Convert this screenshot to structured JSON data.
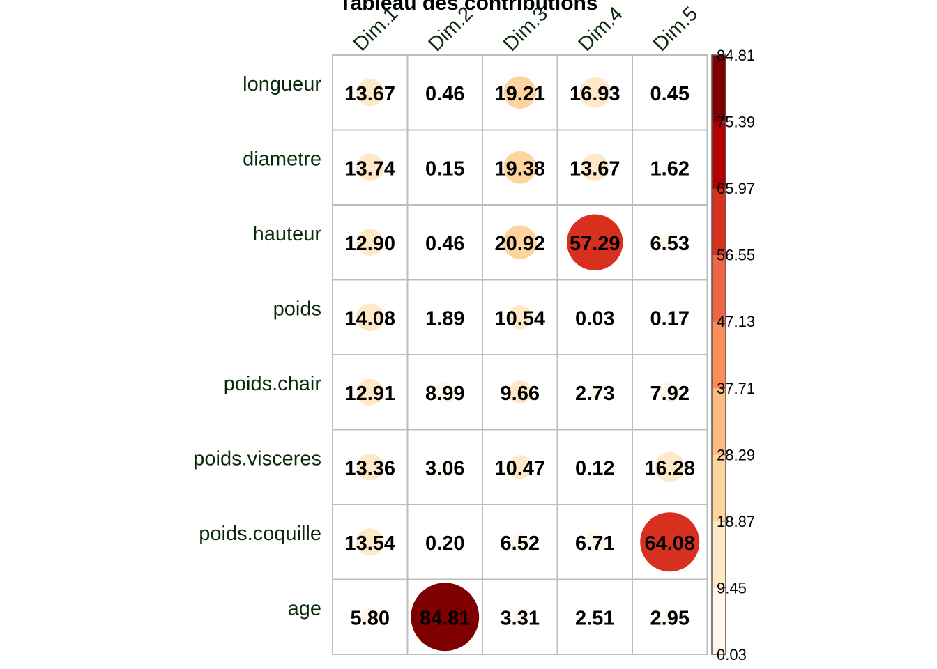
{
  "chart_data": {
    "type": "heatmap",
    "title": "Tableau des contributions",
    "rows": [
      "longueur",
      "diametre",
      "hauteur",
      "poids",
      "poids.chair",
      "poids.visceres",
      "poids.coquille",
      "age"
    ],
    "columns": [
      "Dim.1",
      "Dim.2",
      "Dim.3",
      "Dim.4",
      "Dim.5"
    ],
    "values": [
      [
        13.67,
        0.46,
        19.21,
        16.93,
        0.45
      ],
      [
        13.74,
        0.15,
        19.38,
        13.67,
        1.62
      ],
      [
        12.9,
        0.46,
        20.92,
        57.29,
        6.53
      ],
      [
        14.08,
        1.89,
        10.54,
        0.03,
        0.17
      ],
      [
        12.91,
        8.99,
        9.66,
        2.73,
        7.92
      ],
      [
        13.36,
        3.06,
        10.47,
        0.12,
        16.28
      ],
      [
        13.54,
        0.2,
        6.52,
        6.71,
        64.08
      ],
      [
        5.8,
        84.81,
        3.31,
        2.51,
        2.95
      ]
    ],
    "value_labels": [
      [
        "13.67",
        "0.46",
        "19.21",
        "16.93",
        "0.45"
      ],
      [
        "13.74",
        "0.15",
        "19.38",
        "13.67",
        "1.62"
      ],
      [
        "12.90",
        "0.46",
        "20.92",
        "57.29",
        "6.53"
      ],
      [
        "14.08",
        "1.89",
        "10.54",
        "0.03",
        "0.17"
      ],
      [
        "12.91",
        "8.99",
        "9.66",
        "2.73",
        "7.92"
      ],
      [
        "13.36",
        "3.06",
        "10.47",
        "0.12",
        "16.28"
      ],
      [
        "13.54",
        "0.20",
        "6.52",
        "6.71",
        "64.08"
      ],
      [
        "5.80",
        "84.81",
        "3.31",
        "2.51",
        "2.95"
      ]
    ],
    "legend": {
      "min": 0.03,
      "max": 84.81,
      "ticks": [
        "0.03",
        "9.45",
        "18.87",
        "28.29",
        "37.71",
        "47.13",
        "56.55",
        "65.97",
        "75.39",
        "84.81"
      ],
      "colors": [
        "#FFF7EC",
        "#FEE8C8",
        "#FDD49E",
        "#FDBB84",
        "#FC8D59",
        "#EF6548",
        "#D7301F",
        "#B30000",
        "#7F0000"
      ],
      "placement": "right"
    },
    "grid": true
  }
}
